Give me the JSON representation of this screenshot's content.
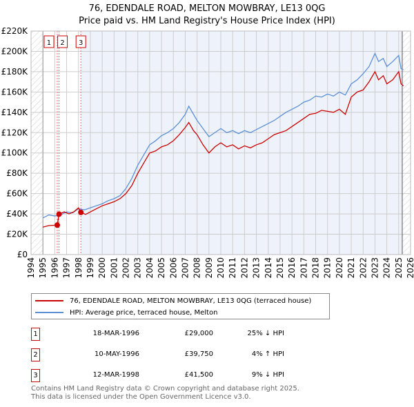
{
  "chart_data": {
    "type": "line",
    "title": "76, EDENDALE ROAD, MELTON MOWBRAY, LE13 0QG",
    "subtitle": "Price paid vs. HM Land Registry's House Price Index (HPI)",
    "xlim": [
      1994,
      2026
    ],
    "ylim": [
      0,
      220000
    ],
    "x_ticks": [
      "1994",
      "1995",
      "1996",
      "1997",
      "1998",
      "1999",
      "2000",
      "2001",
      "2002",
      "2003",
      "2004",
      "2005",
      "2006",
      "2007",
      "2008",
      "2009",
      "2010",
      "2011",
      "2012",
      "2013",
      "2014",
      "2015",
      "2016",
      "2017",
      "2018",
      "2019",
      "2020",
      "2021",
      "2022",
      "2023",
      "2024",
      "2025",
      "2026"
    ],
    "y_ticks": [
      {
        "v": 0,
        "label": "£0"
      },
      {
        "v": 20000,
        "label": "£20K"
      },
      {
        "v": 40000,
        "label": "£40K"
      },
      {
        "v": 60000,
        "label": "£60K"
      },
      {
        "v": 80000,
        "label": "£80K"
      },
      {
        "v": 100000,
        "label": "£100K"
      },
      {
        "v": 120000,
        "label": "£120K"
      },
      {
        "v": 140000,
        "label": "£140K"
      },
      {
        "v": 160000,
        "label": "£160K"
      },
      {
        "v": 180000,
        "label": "£180K"
      },
      {
        "v": 200000,
        "label": "£200K"
      },
      {
        "v": 220000,
        "label": "£220K"
      }
    ],
    "grid": true,
    "series": [
      {
        "name": "76, EDENDALE ROAD, MELTON MOWBRAY, LE13 0QG (terraced house)",
        "color": "#cc0000",
        "x": [
          1995,
          1995.5,
          1996.2,
          1996.21,
          1996.36,
          1996.8,
          1997.2,
          1997.6,
          1998.0,
          1998.2,
          1998.6,
          1999,
          1999.5,
          2000,
          2000.5,
          2001,
          2001.5,
          2002,
          2002.5,
          2003,
          2003.5,
          2004,
          2004.5,
          2005,
          2005.5,
          2006,
          2006.5,
          2007,
          2007.3,
          2007.7,
          2008,
          2008.5,
          2009,
          2009.5,
          2010,
          2010.5,
          2011,
          2011.5,
          2012,
          2012.5,
          2013,
          2013.5,
          2014,
          2014.5,
          2015,
          2015.5,
          2016,
          2016.5,
          2017,
          2017.5,
          2018,
          2018.5,
          2019,
          2019.5,
          2020,
          2020.5,
          2021,
          2021.5,
          2022,
          2022.5,
          2023,
          2023.3,
          2023.7,
          2024,
          2024.5,
          2025,
          2025.2,
          2025.4
        ],
        "y": [
          27000,
          28500,
          29000,
          29000,
          39750,
          42000,
          40000,
          42000,
          46000,
          41500,
          39500,
          42000,
          45000,
          48000,
          50000,
          52000,
          55000,
          60000,
          68000,
          80000,
          90000,
          100000,
          102000,
          106000,
          108000,
          112000,
          118000,
          125000,
          130000,
          122000,
          118000,
          108000,
          100000,
          106000,
          110000,
          106000,
          108000,
          104000,
          107000,
          105000,
          108000,
          110000,
          114000,
          118000,
          120000,
          122000,
          126000,
          130000,
          134000,
          138000,
          139000,
          142000,
          141000,
          140000,
          143000,
          138000,
          155000,
          160000,
          162000,
          170000,
          180000,
          172000,
          176000,
          168000,
          172000,
          180000,
          168000,
          166000
        ]
      },
      {
        "name": "HPI: Average price, terraced house, Melton",
        "color": "#5b8fd6",
        "x": [
          1995,
          1995.5,
          1996,
          1996.5,
          1997,
          1997.5,
          1998,
          1998.5,
          1999,
          1999.5,
          2000,
          2000.5,
          2001,
          2001.5,
          2002,
          2002.5,
          2003,
          2003.5,
          2004,
          2004.5,
          2005,
          2005.5,
          2006,
          2006.5,
          2007,
          2007.3,
          2007.7,
          2008,
          2008.5,
          2009,
          2009.5,
          2010,
          2010.5,
          2011,
          2011.5,
          2012,
          2012.5,
          2013,
          2013.5,
          2014,
          2014.5,
          2015,
          2015.5,
          2016,
          2016.5,
          2017,
          2017.5,
          2018,
          2018.5,
          2019,
          2019.5,
          2020,
          2020.5,
          2021,
          2021.5,
          2022,
          2022.5,
          2023,
          2023.3,
          2023.7,
          2024,
          2024.5,
          2025,
          2025.2,
          2025.4
        ],
        "y": [
          36000,
          39000,
          38000,
          39000,
          42000,
          41000,
          45000,
          44000,
          46000,
          48000,
          50000,
          53000,
          55000,
          58000,
          65000,
          75000,
          88000,
          98000,
          108000,
          112000,
          117000,
          120000,
          124000,
          130000,
          138000,
          146000,
          138000,
          132000,
          124000,
          116000,
          120000,
          124000,
          120000,
          122000,
          119000,
          122000,
          120000,
          123000,
          126000,
          129000,
          132000,
          136000,
          140000,
          143000,
          146000,
          150000,
          152000,
          156000,
          155000,
          158000,
          156000,
          160000,
          157000,
          168000,
          172000,
          178000,
          185000,
          198000,
          190000,
          193000,
          185000,
          190000,
          196000,
          183000,
          182000
        ]
      }
    ],
    "sales": [
      {
        "id": "1",
        "x": 1996.21,
        "y": 29000
      },
      {
        "id": "2",
        "x": 1996.36,
        "y": 39750
      },
      {
        "id": "3",
        "x": 1998.2,
        "y": 41500
      }
    ]
  },
  "legend": {
    "red": "76, EDENDALE ROAD, MELTON MOWBRAY, LE13 0QG (terraced house)",
    "blue": "HPI: Average price, terraced house, Melton"
  },
  "transactions": [
    {
      "id": "1",
      "date": "18-MAR-1996",
      "price": "£29,000",
      "diff": "25% ↓ HPI"
    },
    {
      "id": "2",
      "date": "10-MAY-1996",
      "price": "£39,750",
      "diff": "4% ↑ HPI"
    },
    {
      "id": "3",
      "date": "12-MAR-1998",
      "price": "£41,500",
      "diff": "9% ↓ HPI"
    }
  ],
  "footer": {
    "line1": "Contains HM Land Registry data © Crown copyright and database right 2025.",
    "line2": "This data is licensed under the Open Government Licence v3.0."
  }
}
